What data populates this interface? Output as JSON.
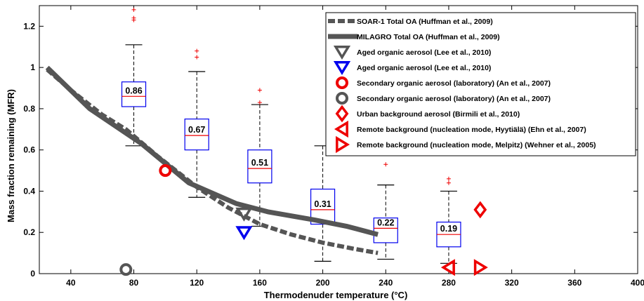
{
  "chart_data": {
    "type": "line",
    "xlabel": "Thermodenuder temperature (°C)",
    "ylabel": "Mass fraction remaining (MFR)",
    "xlim": [
      20,
      400
    ],
    "ylim": [
      0,
      1.3
    ],
    "xticks": [
      40,
      80,
      120,
      160,
      200,
      240,
      280,
      320,
      360,
      400
    ],
    "yticks": [
      0,
      0.2,
      0.4,
      0.6,
      0.8,
      1,
      1.2
    ],
    "ytick_labels": [
      "0",
      "0.2",
      "0.4",
      "0.6",
      "0.8",
      "1",
      "1.2"
    ],
    "grid": false,
    "legend_position": "top-right",
    "lines": [
      {
        "name": "SOAR-1 Total OA (Huffman et al., 2009)",
        "style": "dashed",
        "color": "#555555",
        "points": [
          [
            25,
            0.99
          ],
          [
            40,
            0.89
          ],
          [
            60,
            0.77
          ],
          [
            75,
            0.7
          ],
          [
            95,
            0.57
          ],
          [
            120,
            0.42
          ],
          [
            140,
            0.32
          ],
          [
            160,
            0.24
          ],
          [
            180,
            0.19
          ],
          [
            200,
            0.15
          ],
          [
            220,
            0.12
          ],
          [
            235,
            0.1
          ]
        ]
      },
      {
        "name": "MILAGRO Total OA (Huffman et al., 2009)",
        "style": "solid",
        "color": "#555555",
        "points": [
          [
            25,
            1.0
          ],
          [
            52,
            0.8
          ],
          [
            85,
            0.63
          ],
          [
            115,
            0.44
          ],
          [
            145,
            0.34
          ],
          [
            165,
            0.3
          ],
          [
            195,
            0.26
          ],
          [
            215,
            0.23
          ],
          [
            235,
            0.19
          ]
        ]
      }
    ],
    "boxplots": [
      {
        "x": 80,
        "median": 0.86,
        "median_label": "0.86",
        "q1": 0.81,
        "q3": 0.93,
        "whisker_low": 0.62,
        "whisker_high": 1.11,
        "outliers": [
          1.23,
          1.24,
          1.28
        ]
      },
      {
        "x": 120,
        "median": 0.67,
        "median_label": "0.67",
        "q1": 0.6,
        "q3": 0.75,
        "whisker_low": 0.37,
        "whisker_high": 0.98,
        "outliers": [
          1.05,
          1.08
        ]
      },
      {
        "x": 160,
        "median": 0.51,
        "median_label": "0.51",
        "q1": 0.44,
        "q3": 0.6,
        "whisker_low": 0.23,
        "whisker_high": 0.82,
        "outliers": [
          0.83,
          0.89
        ]
      },
      {
        "x": 200,
        "median": 0.31,
        "median_label": "0.31",
        "q1": 0.24,
        "q3": 0.41,
        "whisker_low": 0.06,
        "whisker_high": 0.62,
        "outliers": []
      },
      {
        "x": 240,
        "median": 0.22,
        "median_label": "0.22",
        "q1": 0.15,
        "q3": 0.27,
        "whisker_low": 0.07,
        "whisker_high": 0.43,
        "outliers": [
          0.53
        ]
      },
      {
        "x": 280,
        "median": 0.19,
        "median_label": "0.19",
        "q1": 0.13,
        "q3": 0.25,
        "whisker_low": 0.05,
        "whisker_high": 0.4,
        "outliers": [
          0.44,
          0.46
        ]
      }
    ],
    "markers": [
      {
        "name": "Aged organic aerosol (Lee et al., 2010)",
        "shape": "triangle-down",
        "color": "#555555",
        "x": 150,
        "y": 0.29
      },
      {
        "name": "Aged organic aerosol (Lee et al., 2010)",
        "shape": "triangle-down",
        "color": "#0000ee",
        "x": 150,
        "y": 0.2
      },
      {
        "name": "Secondary organic aerosol (laboratory) (An et al., 2007)",
        "shape": "circle",
        "color": "#ee0000",
        "x": 100,
        "y": 0.5
      },
      {
        "name": "Secondary organic aerosol (laboratory) (An et al., 2007)",
        "shape": "circle",
        "color": "#555555",
        "x": 75,
        "y": 0.02
      },
      {
        "name": "Urban background aerosol (Birmili et al., 2010)",
        "shape": "diamond",
        "color": "#ee0000",
        "x": 300,
        "y": 0.31
      },
      {
        "name": "Remote background (nucleation mode, Hyytiälä) (Ehn et al., 2007)",
        "shape": "triangle-left",
        "color": "#ee0000",
        "x": 280,
        "y": 0.03
      },
      {
        "name": "Remote background (nucleation mode, Melpitz) (Wehner et al., 2005)",
        "shape": "triangle-right",
        "color": "#ee0000",
        "x": 300,
        "y": 0.03
      }
    ],
    "legend": [
      {
        "label": "SOAR-1 Total OA (Huffman et al., 2009)",
        "kind": "dashed-line",
        "color": "#555555"
      },
      {
        "label": "MILAGRO Total OA (Huffman et al., 2009)",
        "kind": "solid-line",
        "color": "#555555"
      },
      {
        "label": "Aged organic aerosol (Lee et al., 2010)",
        "kind": "triangle-down",
        "color": "#555555"
      },
      {
        "label": "Aged organic aerosol (Lee et al., 2010)",
        "kind": "triangle-down",
        "color": "#0000ee"
      },
      {
        "label": "Secondary organic aerosol (laboratory) (An et al., 2007)",
        "kind": "circle",
        "color": "#ee0000"
      },
      {
        "label": "Secondary organic aerosol (laboratory) (An et al., 2007)",
        "kind": "circle",
        "color": "#555555"
      },
      {
        "label": "Urban background aerosol (Birmili et al., 2010)",
        "kind": "diamond",
        "color": "#ee0000"
      },
      {
        "label": "Remote background (nucleation mode, Hyytiälä) (Ehn et al., 2007)",
        "kind": "triangle-left",
        "color": "#ee0000"
      },
      {
        "label": "Remote background (nucleation mode, Melpitz) (Wehner et al., 2005)",
        "kind": "triangle-right",
        "color": "#ee0000"
      }
    ]
  }
}
